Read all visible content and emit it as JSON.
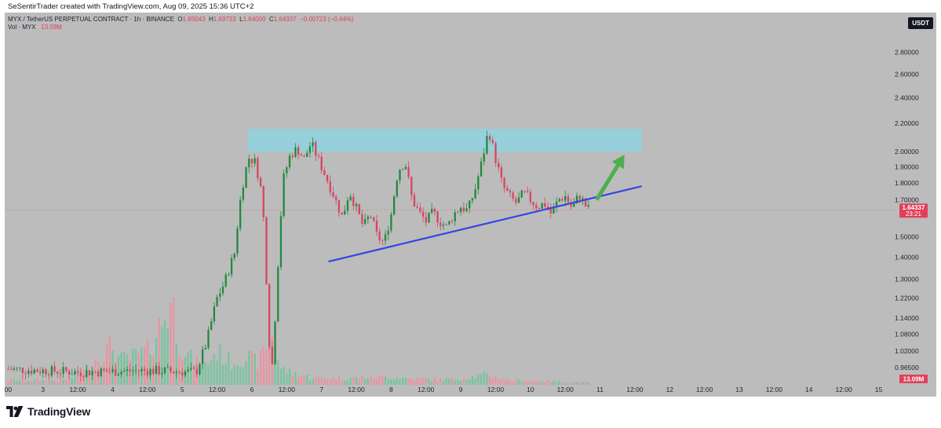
{
  "header": {
    "text": "SeSentirTrader created with TradingView.com, Aug 09, 2025 15:36 UTC+2"
  },
  "legend": {
    "symbol": "MYX / TetherUS PERPETUAL CONTRACT · 1h · BINANCE",
    "open_label": "O",
    "open": "1.65043",
    "high_label": "H",
    "high": "1.69733",
    "low_label": "L",
    "low": "1.64000",
    "close_label": "C",
    "close": "1.64337",
    "change": "−0.00723 (−0.44%)",
    "vol_label": "Vol · MYX",
    "vol_value": "13.09M"
  },
  "currency_badge": "USDT",
  "price_badge": {
    "price": "1.64337",
    "countdown": "23:21"
  },
  "volume_badge": "13.09M",
  "brand": "TradingView",
  "colors": {
    "background": "#bcbcbc",
    "up": "#1f8a3c",
    "down": "#d64560",
    "zone": "#8fd3e0",
    "trendline": "#3346e0",
    "arrow": "#4caf50",
    "price_badge": "#e0415a"
  },
  "chart_data": {
    "type": "candlestick",
    "symbol": "MYX / TetherUS PERPETUAL CONTRACT",
    "interval": "1h",
    "exchange": "BINANCE",
    "y_scale": "log",
    "ylim": [
      0.91,
      3.2
    ],
    "y_ticks": [
      {
        "value": 0.965,
        "label": "0.96500"
      },
      {
        "value": 1.02,
        "label": "1.02000"
      },
      {
        "value": 1.08,
        "label": "1.08000"
      },
      {
        "value": 1.14,
        "label": "1.14000"
      },
      {
        "value": 1.22,
        "label": "1.22000"
      },
      {
        "value": 1.3,
        "label": "1.30000"
      },
      {
        "value": 1.4,
        "label": "1.40000"
      },
      {
        "value": 1.5,
        "label": "1.50000"
      },
      {
        "value": 1.7,
        "label": "1.70000"
      },
      {
        "value": 1.8,
        "label": "1.80000"
      },
      {
        "value": 1.9,
        "label": "1.90000"
      },
      {
        "value": 2.0,
        "label": "2.00000"
      },
      {
        "value": 2.2,
        "label": "2.20000"
      },
      {
        "value": 2.4,
        "label": "2.40000"
      },
      {
        "value": 2.6,
        "label": "2.60000"
      },
      {
        "value": 2.8,
        "label": "2.80000"
      }
    ],
    "x_ticks": [
      {
        "x": 0,
        "label": "00"
      },
      {
        "x": 0.5,
        "label": "3"
      },
      {
        "x": 1,
        "label": "12:00"
      },
      {
        "x": 1.5,
        "label": "4"
      },
      {
        "x": 2,
        "label": "12:00"
      },
      {
        "x": 2.5,
        "label": "5"
      },
      {
        "x": 3,
        "label": "12:00"
      },
      {
        "x": 3.5,
        "label": "6"
      },
      {
        "x": 4,
        "label": "12:00"
      },
      {
        "x": 4.5,
        "label": "7"
      },
      {
        "x": 5,
        "label": "12:00"
      },
      {
        "x": 5.5,
        "label": "8"
      },
      {
        "x": 6,
        "label": "12:00"
      },
      {
        "x": 6.5,
        "label": "9"
      },
      {
        "x": 7,
        "label": "12:00"
      },
      {
        "x": 7.5,
        "label": "10"
      },
      {
        "x": 8,
        "label": "12:00"
      },
      {
        "x": 8.5,
        "label": "11"
      },
      {
        "x": 9,
        "label": "12:00"
      },
      {
        "x": 9.5,
        "label": "12"
      },
      {
        "x": 10,
        "label": "12:00"
      },
      {
        "x": 10.5,
        "label": "13"
      },
      {
        "x": 11,
        "label": "12:00"
      },
      {
        "x": 11.5,
        "label": "14"
      },
      {
        "x": 12,
        "label": "12:00"
      },
      {
        "x": 12.5,
        "label": "15"
      }
    ],
    "xlim": [
      -0.05,
      12.72
    ],
    "last_price": 1.64337,
    "price_path": [
      [
        0.0,
        0.96
      ],
      [
        1.0,
        0.95
      ],
      [
        2.0,
        0.955
      ],
      [
        2.7,
        0.95
      ],
      [
        2.85,
        1.05
      ],
      [
        3.0,
        1.22
      ],
      [
        3.1,
        1.28
      ],
      [
        3.25,
        1.42
      ],
      [
        3.35,
        1.75
      ],
      [
        3.45,
        1.96
      ],
      [
        3.55,
        1.93
      ],
      [
        3.65,
        1.72
      ],
      [
        3.7,
        1.35
      ],
      [
        3.75,
        1.05
      ],
      [
        3.8,
        0.96
      ],
      [
        3.88,
        1.4
      ],
      [
        3.95,
        1.82
      ],
      [
        4.05,
        1.98
      ],
      [
        4.15,
        2.02
      ],
      [
        4.25,
        1.95
      ],
      [
        4.35,
        2.06
      ],
      [
        4.45,
        1.95
      ],
      [
        4.55,
        1.85
      ],
      [
        4.7,
        1.7
      ],
      [
        4.8,
        1.6
      ],
      [
        4.9,
        1.75
      ],
      [
        5.0,
        1.65
      ],
      [
        5.1,
        1.55
      ],
      [
        5.2,
        1.62
      ],
      [
        5.3,
        1.5
      ],
      [
        5.4,
        1.47
      ],
      [
        5.5,
        1.62
      ],
      [
        5.6,
        1.88
      ],
      [
        5.7,
        1.93
      ],
      [
        5.8,
        1.7
      ],
      [
        5.9,
        1.63
      ],
      [
        6.0,
        1.58
      ],
      [
        6.1,
        1.63
      ],
      [
        6.2,
        1.58
      ],
      [
        6.3,
        1.55
      ],
      [
        6.4,
        1.62
      ],
      [
        6.5,
        1.66
      ],
      [
        6.6,
        1.64
      ],
      [
        6.7,
        1.75
      ],
      [
        6.8,
        1.93
      ],
      [
        6.9,
        2.15
      ],
      [
        7.0,
        1.95
      ],
      [
        7.1,
        1.78
      ],
      [
        7.2,
        1.72
      ],
      [
        7.3,
        1.68
      ],
      [
        7.4,
        1.74
      ],
      [
        7.5,
        1.7
      ],
      [
        7.6,
        1.66
      ],
      [
        7.7,
        1.68
      ],
      [
        7.8,
        1.62
      ],
      [
        7.9,
        1.7
      ],
      [
        8.0,
        1.72
      ],
      [
        8.1,
        1.65
      ],
      [
        8.2,
        1.73
      ],
      [
        8.3,
        1.66
      ],
      [
        8.35,
        1.643
      ]
    ],
    "volume_profile": [
      [
        0.0,
        0.04
      ],
      [
        0.8,
        0.04
      ],
      [
        1.05,
        0.1
      ],
      [
        1.3,
        0.25
      ],
      [
        1.5,
        0.35
      ],
      [
        1.6,
        0.22
      ],
      [
        1.8,
        0.25
      ],
      [
        2.0,
        0.3
      ],
      [
        2.2,
        0.55
      ],
      [
        2.35,
        0.75
      ],
      [
        2.45,
        0.4
      ],
      [
        2.6,
        0.25
      ],
      [
        2.8,
        0.15
      ],
      [
        3.0,
        0.3
      ],
      [
        3.2,
        0.2
      ],
      [
        3.4,
        0.25
      ],
      [
        3.6,
        0.2
      ],
      [
        3.8,
        0.5
      ],
      [
        3.9,
        0.15
      ],
      [
        4.1,
        0.1
      ],
      [
        4.4,
        0.06
      ],
      [
        4.9,
        0.06
      ],
      [
        5.4,
        0.07
      ],
      [
        6.0,
        0.05
      ],
      [
        6.4,
        0.05
      ],
      [
        6.9,
        0.09
      ],
      [
        7.2,
        0.04
      ],
      [
        8.35,
        0.02
      ]
    ],
    "annotations": {
      "resistance_zone": {
        "x": [
          3.44,
          9.1
        ],
        "y": [
          2.0,
          2.16
        ]
      },
      "ascending_trendline": {
        "from": [
          4.6,
          1.38
        ],
        "to": [
          9.1,
          1.78
        ]
      },
      "up_arrow": {
        "from": [
          8.45,
          1.7
        ],
        "to": [
          8.85,
          1.98
        ]
      }
    }
  }
}
